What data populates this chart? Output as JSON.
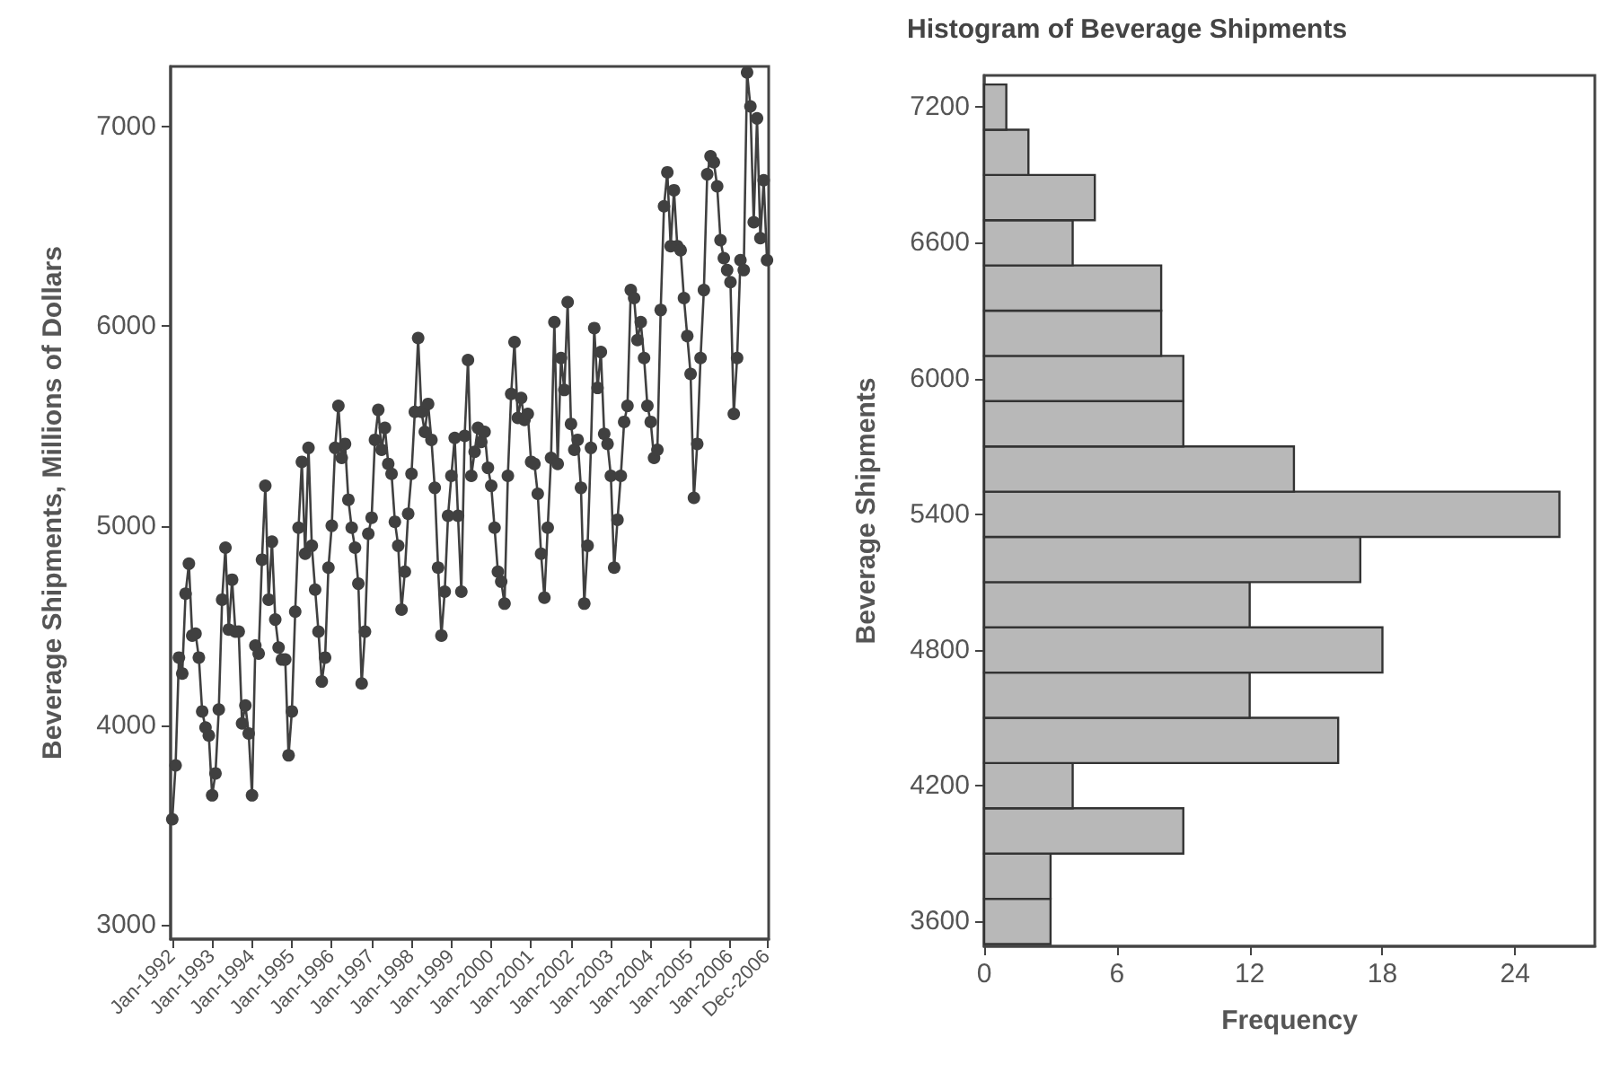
{
  "chart_data": [
    {
      "type": "line",
      "ylabel": "Beverage Shipments, Millions of Dollars",
      "color": "#404040",
      "marker": "circle",
      "line_style": "solid",
      "grid": false,
      "categories": [
        "Jan-1992",
        null,
        null,
        null,
        null,
        null,
        null,
        null,
        null,
        null,
        null,
        null,
        "Jan-1993",
        null,
        null,
        null,
        null,
        null,
        null,
        null,
        null,
        null,
        null,
        null,
        "Jan-1994",
        null,
        null,
        null,
        null,
        null,
        null,
        null,
        null,
        null,
        null,
        null,
        "Jan-1995",
        null,
        null,
        null,
        null,
        null,
        null,
        null,
        null,
        null,
        null,
        null,
        "Jan-1996",
        null,
        null,
        null,
        null,
        null,
        null,
        null,
        null,
        null,
        null,
        null,
        "Jan-1997",
        null,
        null,
        null,
        null,
        null,
        null,
        null,
        null,
        null,
        null,
        null,
        "Jan-1998",
        null,
        null,
        null,
        null,
        null,
        null,
        null,
        null,
        null,
        null,
        null,
        "Jan-1999",
        null,
        null,
        null,
        null,
        null,
        null,
        null,
        null,
        null,
        null,
        null,
        "Jan-2000",
        null,
        null,
        null,
        null,
        null,
        null,
        null,
        null,
        null,
        null,
        null,
        "Jan-2001",
        null,
        null,
        null,
        null,
        null,
        null,
        null,
        null,
        null,
        null,
        null,
        "Jan-2002",
        null,
        null,
        null,
        null,
        null,
        null,
        null,
        null,
        null,
        null,
        null,
        "Jan-2003",
        null,
        null,
        null,
        null,
        null,
        null,
        null,
        null,
        null,
        null,
        null,
        "Jan-2004",
        null,
        null,
        null,
        null,
        null,
        null,
        null,
        null,
        null,
        null,
        null,
        "Jan-2005",
        null,
        null,
        null,
        null,
        null,
        null,
        null,
        null,
        null,
        null,
        null,
        "Jan-2006",
        null,
        null,
        null,
        null,
        null,
        null,
        null,
        null,
        null,
        null,
        "Dec-2006"
      ],
      "values": [
        3530,
        3800,
        4340,
        4260,
        4660,
        4810,
        4450,
        4460,
        4340,
        4070,
        3990,
        3950,
        3650,
        3760,
        4080,
        4630,
        4890,
        4480,
        4730,
        4470,
        4470,
        4010,
        4100,
        3960,
        3650,
        4400,
        4360,
        4830,
        5200,
        4630,
        4920,
        4530,
        4390,
        4330,
        4330,
        3850,
        4070,
        4570,
        4990,
        5320,
        4860,
        5390,
        4900,
        4680,
        4470,
        4220,
        4340,
        4790,
        5000,
        5390,
        5600,
        5340,
        5410,
        5130,
        4990,
        4890,
        4710,
        4210,
        4470,
        4960,
        5040,
        5430,
        5580,
        5380,
        5490,
        5310,
        5260,
        5020,
        4900,
        4580,
        4770,
        5060,
        5260,
        5570,
        5940,
        5570,
        5470,
        5610,
        5430,
        5190,
        4790,
        4450,
        4670,
        5050,
        5250,
        5440,
        5050,
        4670,
        5450,
        5830,
        5250,
        5370,
        5490,
        5420,
        5470,
        5290,
        5200,
        4990,
        4770,
        4720,
        4610,
        5250,
        5660,
        5920,
        5540,
        5640,
        5530,
        5560,
        5320,
        5310,
        5160,
        4860,
        4640,
        4990,
        5340,
        6020,
        5310,
        5840,
        5680,
        6120,
        5510,
        5380,
        5430,
        5190,
        4610,
        4900,
        5390,
        5990,
        5690,
        5870,
        5460,
        5410,
        5250,
        4790,
        5030,
        5250,
        5520,
        5600,
        6180,
        6140,
        5930,
        6020,
        5840,
        5600,
        5520,
        5340,
        5380,
        6080,
        6600,
        6770,
        6400,
        6680,
        6400,
        6380,
        6140,
        5950,
        5760,
        5140,
        5410,
        5840,
        6180,
        6760,
        6850,
        6820,
        6700,
        6430,
        6340,
        6280,
        6220,
        5560,
        5840,
        6330,
        6280,
        7270,
        7100,
        6520,
        7040,
        6440,
        6730,
        6330
      ],
      "ylim": [
        2930,
        7300
      ],
      "yticks": [
        3000,
        4000,
        5000,
        6000,
        7000
      ]
    },
    {
      "type": "histogram",
      "orientation": "horizontal",
      "title": "Histogram of Beverage Shipments",
      "xlabel": "Frequency",
      "ylabel": "Beverage Shipments",
      "color": "#b8b8b8",
      "grid": false,
      "bins": [
        3500,
        3700,
        3900,
        4100,
        4300,
        4500,
        4700,
        4900,
        5100,
        5300,
        5500,
        5700,
        5900,
        6100,
        6300,
        6500,
        6700,
        6900,
        7100,
        7300
      ],
      "values": [
        3,
        3,
        9,
        4,
        16,
        12,
        18,
        12,
        17,
        26,
        14,
        9,
        9,
        8,
        8,
        4,
        5,
        2,
        1
      ],
      "xlim": [
        0,
        27.6
      ],
      "xticks": [
        0,
        6,
        12,
        18,
        24
      ],
      "ylim": [
        3490,
        7340
      ],
      "yticks": [
        3600,
        4200,
        4800,
        5400,
        6000,
        6600,
        7200
      ]
    }
  ]
}
